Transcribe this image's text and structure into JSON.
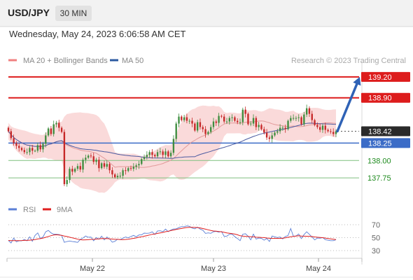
{
  "header": {
    "pair": "USD/JPY",
    "timeframe": "30 MIN",
    "datetime": "Wednesday, May 24, 2023 6:06:58 AM CET"
  },
  "colors": {
    "bollinger_fill": "#f9d4d4",
    "bollinger_mid": "#e29a9a",
    "ma50": "#4a5aa0",
    "resistance": "#dd1c1c",
    "support": "#3b6cc7",
    "target": "#7fbf7f",
    "target_label": "#1d8a1d",
    "candle_up": "#3f8d3f",
    "candle_down": "#c62828",
    "arrow": "#2f62b6",
    "rsi": "#5b7fd6",
    "rsi_ma": "#e01f1f",
    "last_price": "#2a2a2a"
  },
  "chart_data": [
    {
      "type": "candlestick",
      "title": "",
      "legend": [
        {
          "label": "MA 20 + Bollinger Bands",
          "color": "#f08080"
        },
        {
          "label": "MA 50",
          "color": "#2c5aa0"
        }
      ],
      "legend_position": "top-left",
      "watermark": "Research © 2023 Trading Central",
      "ylim": [
        137.5,
        139.4
      ],
      "x_labels": [
        "May 22",
        "May 23",
        "May 24"
      ],
      "levels": [
        {
          "value": 139.2,
          "label": "139.20",
          "kind": "resistance"
        },
        {
          "value": 138.9,
          "label": "138.90",
          "kind": "resistance"
        },
        {
          "value": 138.42,
          "label": "138.42",
          "kind": "last"
        },
        {
          "value": 138.25,
          "label": "138.25",
          "kind": "support"
        },
        {
          "value": 138.0,
          "label": "138.00",
          "kind": "target"
        },
        {
          "value": 137.75,
          "label": "137.75",
          "kind": "target"
        }
      ],
      "arrow": {
        "from": 138.42,
        "to": 139.2
      },
      "close": [
        138.42,
        138.32,
        138.25,
        138.21,
        138.18,
        138.15,
        138.12,
        138.12,
        138.18,
        138.14,
        138.14,
        138.22,
        138.16,
        138.24,
        138.36,
        138.46,
        138.38,
        138.52,
        138.54,
        138.47,
        138.41,
        137.66,
        137.72,
        137.88,
        137.84,
        137.88,
        137.92,
        137.87,
        138.01,
        138.04,
        138.07,
        138.06,
        137.98,
        138.01,
        137.89,
        137.96,
        137.91,
        137.95,
        137.86,
        137.8,
        137.76,
        137.78,
        137.78,
        137.86,
        137.85,
        137.89,
        137.88,
        137.91,
        137.93,
        137.95,
        138.02,
        138.05,
        138.08,
        138.12,
        138.08,
        138.06,
        138.12,
        138.13,
        138.08,
        138.13,
        138.06,
        138.11,
        138.31,
        138.53,
        138.63,
        138.58,
        138.62,
        138.57,
        138.57,
        138.53,
        138.43,
        138.55,
        138.48,
        138.45,
        138.38,
        138.41,
        138.48,
        138.56,
        138.54,
        138.64,
        138.63,
        138.56,
        138.56,
        138.61,
        138.62,
        138.57,
        138.55,
        138.55,
        138.73,
        138.67,
        138.52,
        138.53,
        138.61,
        138.48,
        138.51,
        138.45,
        138.4,
        138.33,
        138.31,
        138.36,
        138.4,
        138.42,
        138.47,
        138.47,
        138.45,
        138.57,
        138.61,
        138.61,
        138.61,
        138.62,
        138.52,
        138.66,
        138.75,
        138.67,
        138.58,
        138.51,
        138.48,
        138.44,
        138.5,
        138.44,
        138.42,
        138.41,
        138.38,
        138.42
      ]
    },
    {
      "type": "line",
      "title": "",
      "legend": [
        {
          "label": "RSI",
          "color": "#5b7fd6"
        },
        {
          "label": "9MA",
          "color": "#e01f1f"
        }
      ],
      "legend_position": "top-left",
      "ylim": [
        30,
        70
      ],
      "y_ticks": [
        "70",
        "50",
        "30"
      ],
      "series": [
        {
          "name": "RSI",
          "values": [
            45.7,
            41.8,
            49.4,
            43.5,
            45.1,
            45.0,
            47.3,
            45.1,
            51.3,
            44.4,
            53.3,
            57.3,
            48.8,
            51.1,
            59.1,
            61.1,
            57.4,
            55.3,
            55.2,
            54.8,
            53.4,
            42.8,
            44.1,
            44.8,
            43.9,
            43.5,
            42.6,
            47.3,
            49.5,
            52.5,
            50.6,
            50.9,
            45.1,
            50.1,
            47.5,
            52.4,
            46.5,
            51.0,
            48.0,
            43.0,
            44.4,
            47.6,
            47.0,
            49.2,
            51.0,
            49.8,
            51.7,
            53.5,
            51.3,
            54.1,
            54.3,
            57.0,
            56.7,
            57.1,
            59.0,
            55.0,
            60.4,
            60.6,
            59.3,
            63.2,
            59.3,
            61.7,
            63.4,
            63.6,
            65.6,
            67.0,
            67.0,
            68.2,
            67.5,
            64.8,
            63.6,
            66.3,
            63.2,
            61.5,
            56.6,
            57.3,
            56.7,
            59.2,
            59.6,
            58.4,
            59.6,
            52.0,
            52.4,
            55.1,
            55.3,
            51.6,
            48.7,
            45.3,
            55.3,
            56.0,
            52.3,
            46.7,
            55.4,
            47.7,
            49.4,
            48.9,
            46.1,
            48.7,
            44.2,
            52.5,
            51.3,
            50.2,
            51.0,
            48.1,
            51.8,
            53.2,
            64.2,
            52.3,
            52.6,
            55.6,
            48.6,
            54.7,
            59.1,
            55.1,
            50.9,
            46.5,
            49.3,
            49.1,
            50.1,
            46.8,
            46.0,
            45.3,
            45.3,
            46.8
          ]
        },
        {
          "name": "9MA",
          "values": [
            45.7,
            45.5,
            45.4,
            45.3,
            45.5,
            45.6,
            45.8,
            45.8,
            46.1,
            46.4,
            47.1,
            47.9,
            48.5,
            49.4,
            50.5,
            51.8,
            53.0,
            54.0,
            54.4,
            54.0,
            53.5,
            52.5,
            51.7,
            50.6,
            49.7,
            48.8,
            47.6,
            46.9,
            46.4,
            46.6,
            46.9,
            47.3,
            47.4,
            47.8,
            48.1,
            48.7,
            48.5,
            48.7,
            48.1,
            47.8,
            47.4,
            47.4,
            47.1,
            46.9,
            47.2,
            47.6,
            48.3,
            48.9,
            49.6,
            50.7,
            51.3,
            52.3,
            53.1,
            54.1,
            55.2,
            55.6,
            56.6,
            57.4,
            58.1,
            59.2,
            59.8,
            60.9,
            61.8,
            62.7,
            63.5,
            64.2,
            65.0,
            65.7,
            66.0,
            65.9,
            65.8,
            65.6,
            65.0,
            64.1,
            63.1,
            62.1,
            61.1,
            60.3,
            60.0,
            59.4,
            59.1,
            58.2,
            57.4,
            56.8,
            56.2,
            55.5,
            54.4,
            52.9,
            52.5,
            51.9,
            51.8,
            51.4,
            51.4,
            50.7,
            50.5,
            50.2,
            50.1,
            49.5,
            49.0,
            48.8,
            48.9,
            48.9,
            48.8,
            49.1,
            49.7,
            50.5,
            51.4,
            51.9,
            52.5,
            52.9,
            52.4,
            52.3,
            52.2,
            52.1,
            51.7,
            51.1,
            50.6,
            50.3,
            50.0,
            49.3,
            48.7,
            48.1,
            47.5,
            47.0
          ]
        }
      ]
    }
  ]
}
